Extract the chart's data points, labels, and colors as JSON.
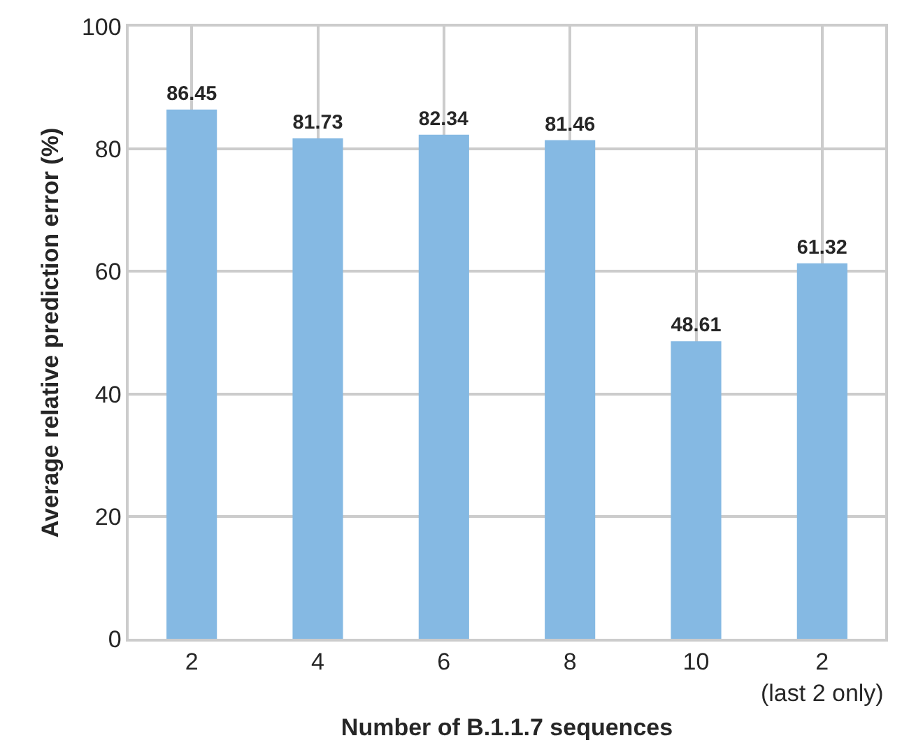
{
  "chart_data": {
    "type": "bar",
    "xlabel": "Number of B.1.1.7 sequences",
    "ylabel": "Average relative prediction error (%)",
    "categories": [
      "2",
      "4",
      "6",
      "8",
      "10",
      "2\n(last 2 only)"
    ],
    "values": [
      86.45,
      81.73,
      82.34,
      81.46,
      48.61,
      61.32
    ],
    "color": "#85b9e3",
    "ylim": [
      0,
      100
    ],
    "yticks": [
      0,
      20,
      40,
      60,
      80,
      100
    ],
    "grid": true,
    "data_labels": true,
    "legend": false
  }
}
